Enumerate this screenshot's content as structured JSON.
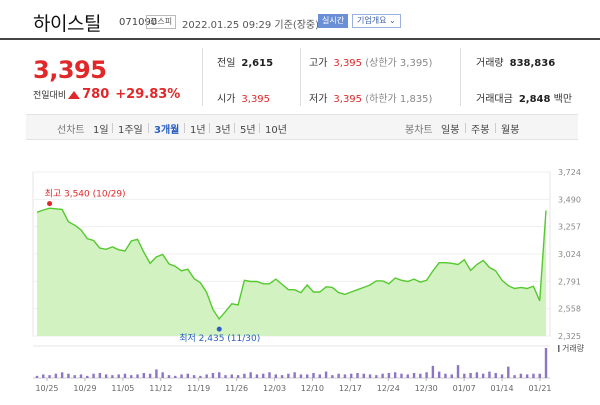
{
  "header": {
    "name": "하이스틸",
    "code": "071090",
    "market": "코스피",
    "datetime": "2022.01.25 09:29 기준(장중)",
    "realtime": "실시간",
    "company_overview": "기업개요"
  },
  "quote": {
    "price": "3,395",
    "change_label": "전일대비",
    "change_value": "780",
    "change_pct": "+29.83%",
    "prev_close_label": "전일",
    "prev_close": "2,615",
    "open_label": "시가",
    "open": "3,395",
    "high_label": "고가",
    "high": "3,395",
    "high_note": "(상한가 3,395)",
    "low_label": "저가",
    "low": "3,395",
    "low_note": "(하한가 1,835)",
    "volume_label": "거래량",
    "volume": "838,836",
    "amount_label": "거래대금",
    "amount": "2,848",
    "amount_unit": "백만"
  },
  "tabs": {
    "line_label": "선차트",
    "periods": [
      "1일",
      "1주일",
      "3개월",
      "1년",
      "3년",
      "5년",
      "10년"
    ],
    "selected": "3개월",
    "candle_label": "봉차트",
    "candles": [
      "일봉",
      "주봉",
      "월봉"
    ]
  },
  "colors": {
    "up": "#e0282a",
    "down": "#2a5fbf",
    "line": "#55c92f",
    "fill": "#d3f2c2",
    "volume_bar": "#8b75c4"
  },
  "chart_data": {
    "type": "area",
    "y_ticks": [
      "3,724",
      "3,490",
      "3,257",
      "3,024",
      "2,791",
      "2,558",
      "2,325"
    ],
    "x_ticks": [
      "10/25",
      "10/29",
      "11/05",
      "11/12",
      "11/19",
      "11/26",
      "12/03",
      "12/10",
      "12/17",
      "12/24",
      "12/30",
      "01/07",
      "01/14",
      "01/21"
    ],
    "high_marker": {
      "label": "최고",
      "value": "3,540",
      "date": "(10/29)"
    },
    "low_marker": {
      "label": "최저",
      "value": "2,435",
      "date": "(11/30)"
    },
    "volume_label": "거래량",
    "ylim": [
      2325,
      3724
    ],
    "prices": [
      3380,
      3400,
      3415,
      3410,
      3405,
      3300,
      3270,
      3230,
      3155,
      3140,
      3075,
      3065,
      3085,
      3060,
      3050,
      3135,
      3150,
      3040,
      2945,
      3000,
      3020,
      2940,
      2920,
      2880,
      2895,
      2815,
      2780,
      2695,
      2550,
      2470,
      2535,
      2600,
      2590,
      2800,
      2790,
      2790,
      2770,
      2770,
      2810,
      2765,
      2720,
      2720,
      2695,
      2760,
      2700,
      2700,
      2745,
      2740,
      2695,
      2680,
      2700,
      2720,
      2740,
      2760,
      2795,
      2795,
      2770,
      2820,
      2800,
      2790,
      2810,
      2785,
      2800,
      2880,
      2950,
      2950,
      2945,
      2935,
      2975,
      2885,
      2935,
      2970,
      2910,
      2880,
      2800,
      2755,
      2730,
      2740,
      2730,
      2750,
      2625,
      3395
    ],
    "volumes": [
      3,
      5,
      4,
      6,
      8,
      6,
      4,
      5,
      3,
      6,
      7,
      5,
      4,
      5,
      6,
      4,
      5,
      7,
      6,
      12,
      8,
      4,
      3,
      5,
      6,
      4,
      3,
      5,
      7,
      8,
      4,
      5,
      4,
      6,
      8,
      5,
      6,
      8,
      5,
      4,
      6,
      8,
      5,
      5,
      7,
      5,
      9,
      4,
      6,
      5,
      6,
      7,
      6,
      5,
      4,
      6,
      7,
      8,
      6,
      5,
      7,
      6,
      8,
      17,
      9,
      6,
      5,
      18,
      6,
      7,
      8,
      6,
      9,
      7,
      5,
      16,
      4,
      6,
      5,
      6,
      6,
      42
    ]
  }
}
